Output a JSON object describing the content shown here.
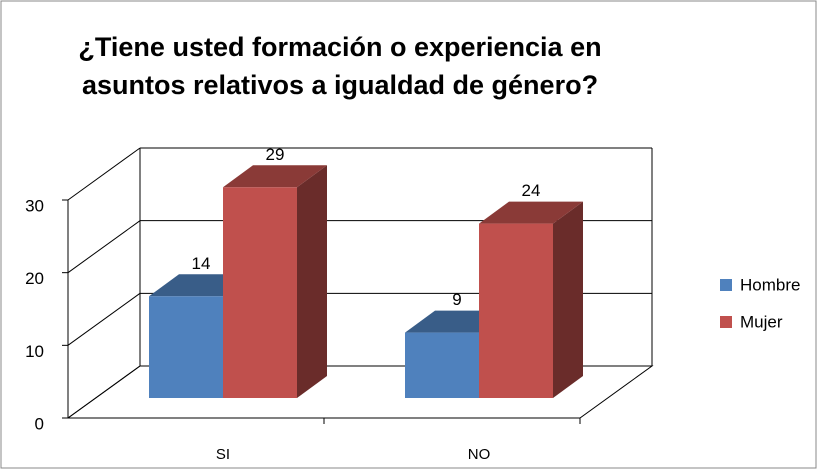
{
  "chart_data": {
    "type": "bar3d",
    "title": "¿Tiene usted formación o experiencia en asuntos relativos a igualdad de género?",
    "categories": [
      "SI",
      "NO"
    ],
    "series": [
      {
        "name": "Hombre",
        "color": "#4f81bd",
        "values": [
          14,
          9
        ]
      },
      {
        "name": "Mujer",
        "color": "#c0504d",
        "values": [
          29,
          24
        ]
      }
    ],
    "ylim": [
      0,
      30
    ],
    "yticks": [
      0,
      10,
      20,
      30
    ],
    "grid": true,
    "legend": "right"
  }
}
